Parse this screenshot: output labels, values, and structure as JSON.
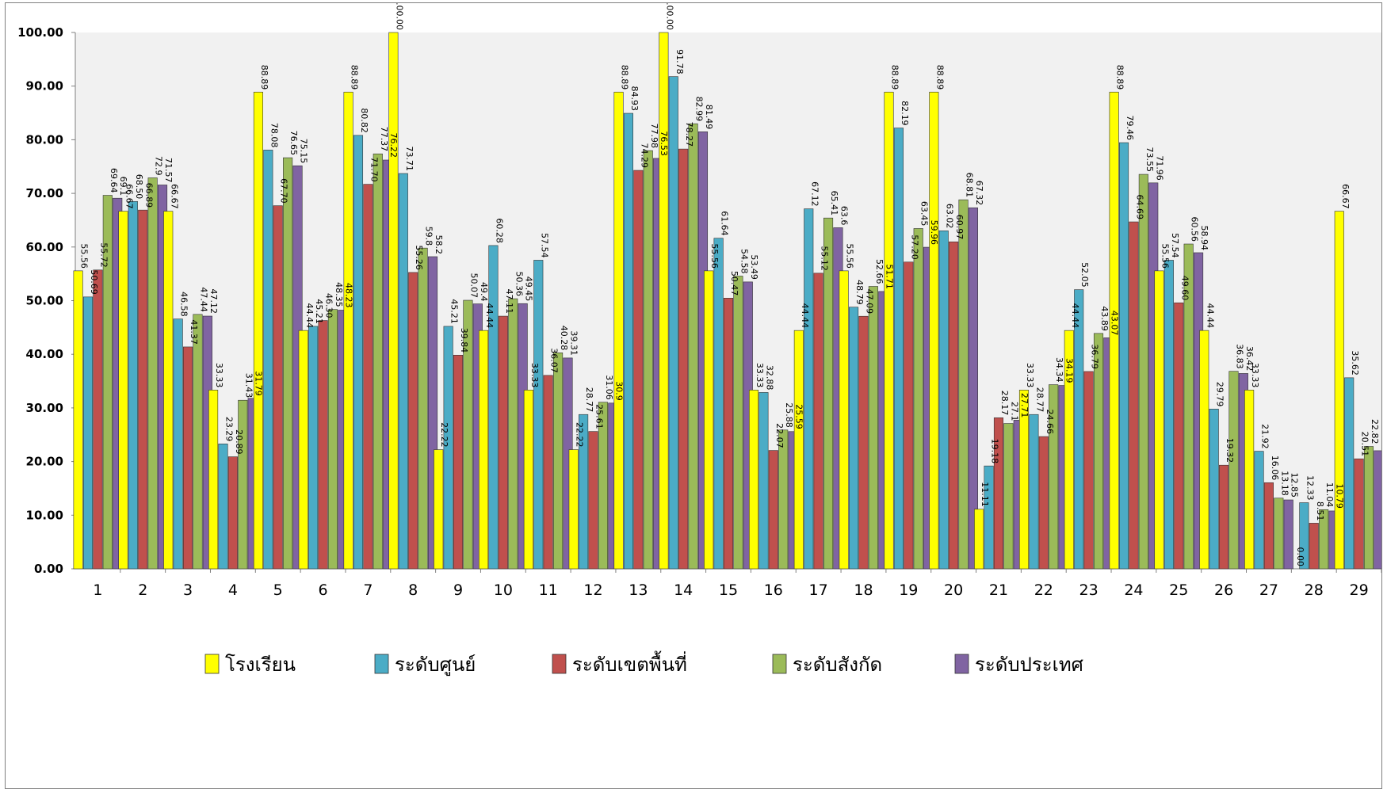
{
  "chart_data": {
    "type": "bar",
    "title": "",
    "xlabel": "",
    "ylabel": "",
    "ylim": [
      0,
      100
    ],
    "y_ticks": [
      "0.00",
      "10.00",
      "20.00",
      "30.00",
      "40.00",
      "50.00",
      "60.00",
      "70.00",
      "80.00",
      "90.00",
      "100.00"
    ],
    "grid": false,
    "legend_position": "bottom",
    "categories": [
      "1",
      "2",
      "3",
      "4",
      "5",
      "6",
      "7",
      "8",
      "9",
      "10",
      "11",
      "12",
      "13",
      "14",
      "15",
      "16",
      "17",
      "18",
      "19",
      "20",
      "21",
      "22",
      "23",
      "24",
      "25",
      "26",
      "27",
      "28",
      "29"
    ],
    "series": [
      {
        "name": "โรงเรียน",
        "color": "#ffff00",
        "values": [
          55.56,
          66.67,
          66.67,
          33.33,
          88.89,
          44.44,
          88.89,
          100,
          22.22,
          44.44,
          33.33,
          22.22,
          88.89,
          100,
          55.56,
          33.33,
          44.44,
          55.56,
          88.89,
          88.89,
          11.11,
          33.33,
          44.44,
          88.89,
          55.56,
          44.44,
          33.33,
          0,
          66.67
        ],
        "labels": [
          "55.56",
          "66.67",
          "66.67",
          "33.33",
          "88.89",
          "44.44",
          "88.89",
          "100.00",
          "22.22",
          "44.44",
          "33.33",
          "22.22",
          "88.89",
          "100.00",
          "55.56",
          "33.33",
          "44.44",
          "55.56",
          "88.89",
          "88.89",
          "11.11",
          "33.33",
          "44.44",
          "88.89",
          "55.56",
          "44.44",
          "33.33",
          "0.00",
          "66.67"
        ]
      },
      {
        "name": "ระดับศูนย์",
        "color": "#4bacc6",
        "values": [
          50.69,
          68.5,
          46.58,
          23.29,
          78.08,
          45.21,
          80.82,
          73.71,
          45.21,
          60.28,
          57.54,
          28.77,
          84.93,
          91.78,
          61.64,
          32.88,
          67.12,
          48.79,
          82.19,
          63.02,
          19.18,
          28.77,
          52.05,
          79.46,
          57.54,
          29.79,
          21.92,
          12.33,
          35.62
        ],
        "labels": [
          "50.69",
          "68.50",
          "46.58",
          "23.29",
          "78.08",
          "45.21",
          "80.82",
          "73.71",
          "45.21",
          "60.28",
          "57.54",
          "28.77",
          "84.93",
          "91.78",
          "61.64",
          "32.88",
          "67.12",
          "48.79",
          "82.19",
          "63.02",
          "19.18",
          "28.77",
          "52.05",
          "79.46",
          "57.54",
          "29.79",
          "21.92",
          "12.33",
          "35.62"
        ]
      },
      {
        "name": "ระดับเขตพื้นที่",
        "color": "#c0504d",
        "values": [
          55.72,
          66.89,
          41.37,
          20.89,
          67.7,
          46.3,
          71.7,
          55.26,
          39.84,
          47.11,
          36.07,
          25.61,
          74.29,
          78.27,
          50.47,
          22.07,
          55.12,
          47.09,
          57.2,
          60.97,
          28.17,
          24.66,
          36.79,
          64.69,
          49.6,
          19.32,
          16.06,
          8.51,
          20.51
        ],
        "labels": [
          "55.72",
          "66.89",
          "41.37",
          "20.89",
          "67.70",
          "46.30",
          "71.70",
          "55.26",
          "39.84",
          "47.11",
          "36.07",
          "25.61",
          "74.29",
          "78.27",
          "50.47",
          "22.07",
          "55.12",
          "47.09",
          "57.20",
          "60.97",
          "28.17",
          "24.66",
          "36.79",
          "64.69",
          "49.60",
          "19.32",
          "16.06",
          "8.51",
          "20.51"
        ]
      },
      {
        "name": "ระดับสังกัด",
        "color": "#9bbb59",
        "values": [
          69.64,
          72.9,
          47.44,
          31.43,
          76.65,
          48.35,
          77.37,
          59.8,
          50.07,
          50.36,
          40.28,
          31.06,
          77.98,
          82.99,
          54.58,
          25.88,
          65.41,
          52.66,
          63.45,
          68.81,
          27.1,
          34.34,
          43.89,
          73.55,
          60.56,
          36.83,
          13.18,
          11.04,
          22.82
        ],
        "labels": [
          "69.64",
          "72.9",
          "47.44",
          "31.43",
          "76.65",
          "48.35",
          "77.37",
          "59.8",
          "50.07",
          "50.36",
          "40.28",
          "31.06",
          "77.98",
          "82.99",
          "54.58",
          "25.88",
          "65.41",
          "52.66",
          "63.45",
          "68.81",
          "27.1",
          "34.34",
          "43.89",
          "73.55",
          "60.56",
          "36.83",
          "13.18",
          "11.04",
          "22.82"
        ]
      },
      {
        "name": "ระดับประเทศ",
        "color": "#8064a2",
        "values": [
          69.1,
          71.57,
          47.12,
          31.79,
          75.15,
          48.23,
          76.22,
          58.2,
          49.4,
          49.45,
          39.31,
          30.9,
          76.53,
          81.49,
          53.49,
          25.59,
          63.6,
          51.71,
          59.96,
          67.32,
          27.71,
          34.19,
          43.07,
          71.96,
          58.94,
          36.42,
          12.85,
          10.79,
          22.02
        ],
        "labels": [
          "69.1",
          "71.57",
          "47.12",
          "31.79",
          "75.15",
          "48.23",
          "76.22",
          "58.2",
          "49.4",
          "49.45",
          "39.31",
          "30.9",
          "76.53",
          "81.49",
          "53.49",
          "25.59",
          "63.6",
          "51.71",
          "59.96",
          "67.32",
          "27.71",
          "34.19",
          "43.07",
          "71.96",
          "58.94",
          "36.42",
          "12.85",
          "10.79",
          "22.02"
        ]
      }
    ]
  }
}
